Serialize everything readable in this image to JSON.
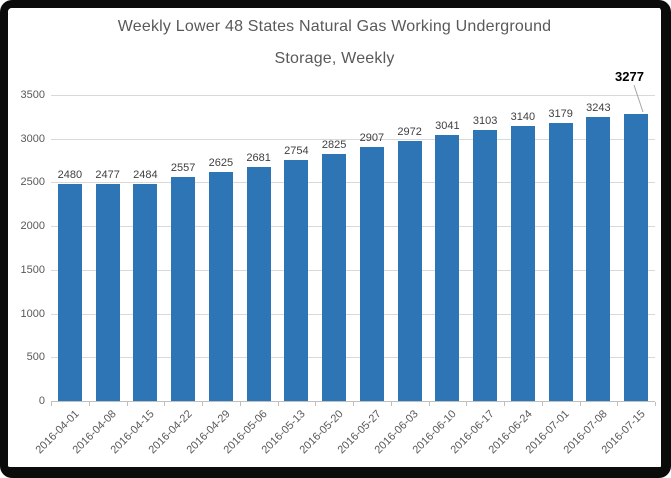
{
  "frame": {
    "border_color": "#0b0b0b",
    "background_color": "#ffffff"
  },
  "chart_data": {
    "type": "bar",
    "title": "Weekly Lower 48 States Natural Gas Working Underground Storage, Weekly",
    "title_lines": [
      "Weekly Lower 48 States Natural Gas Working Underground",
      "Storage, Weekly"
    ],
    "xlabel": "",
    "ylabel": "",
    "categories": [
      "2016-04-01",
      "2016-04-08",
      "2016-04-15",
      "2016-04-22",
      "2016-04-29",
      "2016-05-06",
      "2016-05-13",
      "2016-05-20",
      "2016-05-27",
      "2016-06-03",
      "2016-06-10",
      "2016-06-17",
      "2016-06-24",
      "2016-07-01",
      "2016-07-08",
      "2016-07-15"
    ],
    "values": [
      2480,
      2477,
      2484,
      2557,
      2625,
      2681,
      2754,
      2825,
      2907,
      2972,
      3041,
      3103,
      3140,
      3179,
      3243,
      3277
    ],
    "yticks": [
      0,
      500,
      1000,
      1500,
      2000,
      2500,
      3000,
      3500
    ],
    "ylim": [
      0,
      3500
    ],
    "grid": "horizontal",
    "legend": "none",
    "bar_color": "#2e75b6",
    "gridline_color": "#d9d9d9",
    "axis_color": "#bfbfbf",
    "tick_label_color": "#595959",
    "data_label_color": "#404040",
    "title_color": "#595959",
    "callout": {
      "index": 15,
      "label": "3277",
      "color": "#000000"
    }
  }
}
